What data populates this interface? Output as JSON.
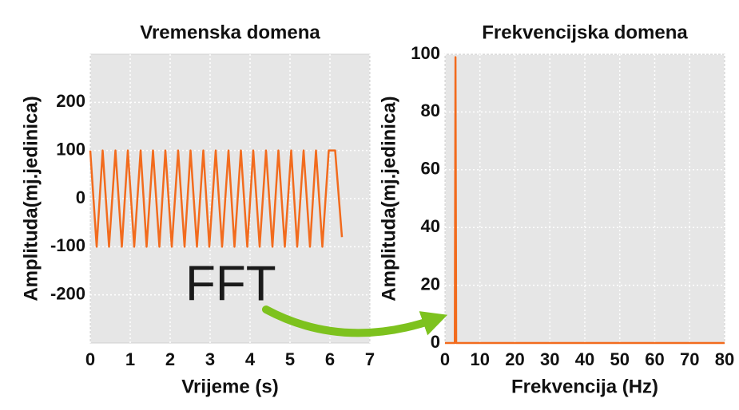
{
  "chart_data": [
    {
      "type": "line",
      "title": "Vremenska domena",
      "x_label": "Vrijeme (s)",
      "y_label": "Amplituda(mj.jedinica)",
      "xlim": [
        0,
        7
      ],
      "xticks": [
        0,
        1,
        2,
        3,
        4,
        5,
        6,
        7
      ],
      "ylim": [
        -300,
        300
      ],
      "yticks": [
        -200,
        -100,
        0,
        100,
        200
      ],
      "grid": true,
      "series": [
        {
          "color": "#f26b1d",
          "x": [
            0,
            0.16,
            0.31,
            0.47,
            0.63,
            0.79,
            0.94,
            1.1,
            1.26,
            1.41,
            1.57,
            1.73,
            1.88,
            2.04,
            2.2,
            2.36,
            2.51,
            2.67,
            2.83,
            2.98,
            3.14,
            3.3,
            3.46,
            3.61,
            3.77,
            3.93,
            4.08,
            4.24,
            4.4,
            4.56,
            4.71,
            4.87,
            5.03,
            5.18,
            5.34,
            5.5,
            5.65,
            5.81,
            5.97,
            6.13,
            6.3
          ],
          "values": [
            100,
            -100,
            100,
            -100,
            100,
            -100,
            100,
            -100,
            100,
            -100,
            100,
            -100,
            100,
            -100,
            100,
            -100,
            100,
            -100,
            100,
            -100,
            100,
            -100,
            100,
            -100,
            100,
            -100,
            100,
            -100,
            100,
            -100,
            100,
            -100,
            100,
            -100,
            100,
            -100,
            100,
            -100,
            100,
            100,
            -80
          ]
        }
      ]
    },
    {
      "type": "line",
      "title": "Frekvencijska domena",
      "x_label": "Frekvencija (Hz)",
      "y_label": "Amplituda(mj.jedinica)",
      "xlim": [
        0,
        80
      ],
      "xticks": [
        0,
        10,
        20,
        30,
        40,
        50,
        60,
        70,
        80
      ],
      "ylim": [
        0,
        100
      ],
      "yticks": [
        0,
        20,
        40,
        60,
        80,
        100
      ],
      "grid": true,
      "series": [
        {
          "color": "#f26b1d",
          "x": [
            0,
            2.8,
            3,
            3.2,
            80
          ],
          "values": [
            0,
            0,
            99,
            0,
            0
          ]
        }
      ]
    }
  ],
  "annotation": "FFT"
}
